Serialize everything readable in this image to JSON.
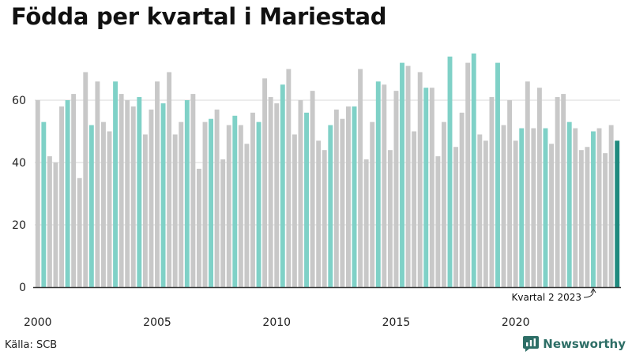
{
  "title": "Födda per kvartal i Mariestad",
  "source": "Källa: SCB",
  "brand": {
    "name": "Newsworthy",
    "icon": "newsworthy-logo-icon",
    "color": "#2d6e66"
  },
  "colors": {
    "default": "#c8c8c8",
    "highlight": "#7fd1c7",
    "latest": "#1f8a7e"
  },
  "chart_data": {
    "type": "bar",
    "title": "Födda per kvartal i Mariestad",
    "xlabel": "",
    "ylabel": "",
    "ylim": [
      0,
      80
    ],
    "yticks": [
      0,
      20,
      40,
      60
    ],
    "xticks": [
      "2000",
      "2005",
      "2010",
      "2015",
      "2020"
    ],
    "grid": true,
    "annotation": {
      "text": "Kvartal 2 2023",
      "target": "2023 Q2"
    },
    "categories": [
      "2000 Q1",
      "2000 Q2",
      "2000 Q3",
      "2000 Q4",
      "2001 Q1",
      "2001 Q2",
      "2001 Q3",
      "2001 Q4",
      "2002 Q1",
      "2002 Q2",
      "2002 Q3",
      "2002 Q4",
      "2003 Q1",
      "2003 Q2",
      "2003 Q3",
      "2003 Q4",
      "2004 Q1",
      "2004 Q2",
      "2004 Q3",
      "2004 Q4",
      "2005 Q1",
      "2005 Q2",
      "2005 Q3",
      "2005 Q4",
      "2006 Q1",
      "2006 Q2",
      "2006 Q3",
      "2006 Q4",
      "2007 Q1",
      "2007 Q2",
      "2007 Q3",
      "2007 Q4",
      "2008 Q1",
      "2008 Q2",
      "2008 Q3",
      "2008 Q4",
      "2009 Q1",
      "2009 Q2",
      "2009 Q3",
      "2009 Q4",
      "2010 Q1",
      "2010 Q2",
      "2010 Q3",
      "2010 Q4",
      "2011 Q1",
      "2011 Q2",
      "2011 Q3",
      "2011 Q4",
      "2012 Q1",
      "2012 Q2",
      "2012 Q3",
      "2012 Q4",
      "2013 Q1",
      "2013 Q2",
      "2013 Q3",
      "2013 Q4",
      "2014 Q1",
      "2014 Q2",
      "2014 Q3",
      "2014 Q4",
      "2015 Q1",
      "2015 Q2",
      "2015 Q3",
      "2015 Q4",
      "2016 Q1",
      "2016 Q2",
      "2016 Q3",
      "2016 Q4",
      "2017 Q1",
      "2017 Q2",
      "2017 Q3",
      "2017 Q4",
      "2018 Q1",
      "2018 Q2",
      "2018 Q3",
      "2018 Q4",
      "2019 Q1",
      "2019 Q2",
      "2019 Q3",
      "2019 Q4",
      "2020 Q1",
      "2020 Q2",
      "2020 Q3",
      "2020 Q4",
      "2021 Q1",
      "2021 Q2",
      "2021 Q3",
      "2021 Q4",
      "2022 Q1",
      "2022 Q2",
      "2022 Q3",
      "2022 Q4",
      "2023 Q1",
      "2023 Q2",
      "2023 Q3",
      "2023 Q4",
      "2024 Q1",
      "2024 Q2"
    ],
    "values": [
      60,
      53,
      42,
      40,
      58,
      60,
      62,
      35,
      69,
      52,
      66,
      53,
      50,
      66,
      62,
      60,
      58,
      61,
      49,
      57,
      66,
      59,
      69,
      49,
      53,
      60,
      62,
      38,
      53,
      54,
      57,
      41,
      52,
      55,
      52,
      46,
      56,
      53,
      67,
      61,
      59,
      65,
      70,
      49,
      60,
      56,
      63,
      47,
      44,
      52,
      57,
      54,
      58,
      58,
      70,
      41,
      53,
      66,
      65,
      44,
      63,
      72,
      71,
      50,
      69,
      64,
      64,
      42,
      53,
      74,
      45,
      56,
      72,
      75,
      49,
      47,
      61,
      72,
      52,
      60,
      47,
      51,
      66,
      51,
      64,
      51,
      46,
      61,
      62,
      53,
      51,
      44,
      45,
      50,
      51,
      43,
      52,
      47
    ],
    "highlight_quarter": "Q2",
    "latest": "2024 Q2"
  }
}
